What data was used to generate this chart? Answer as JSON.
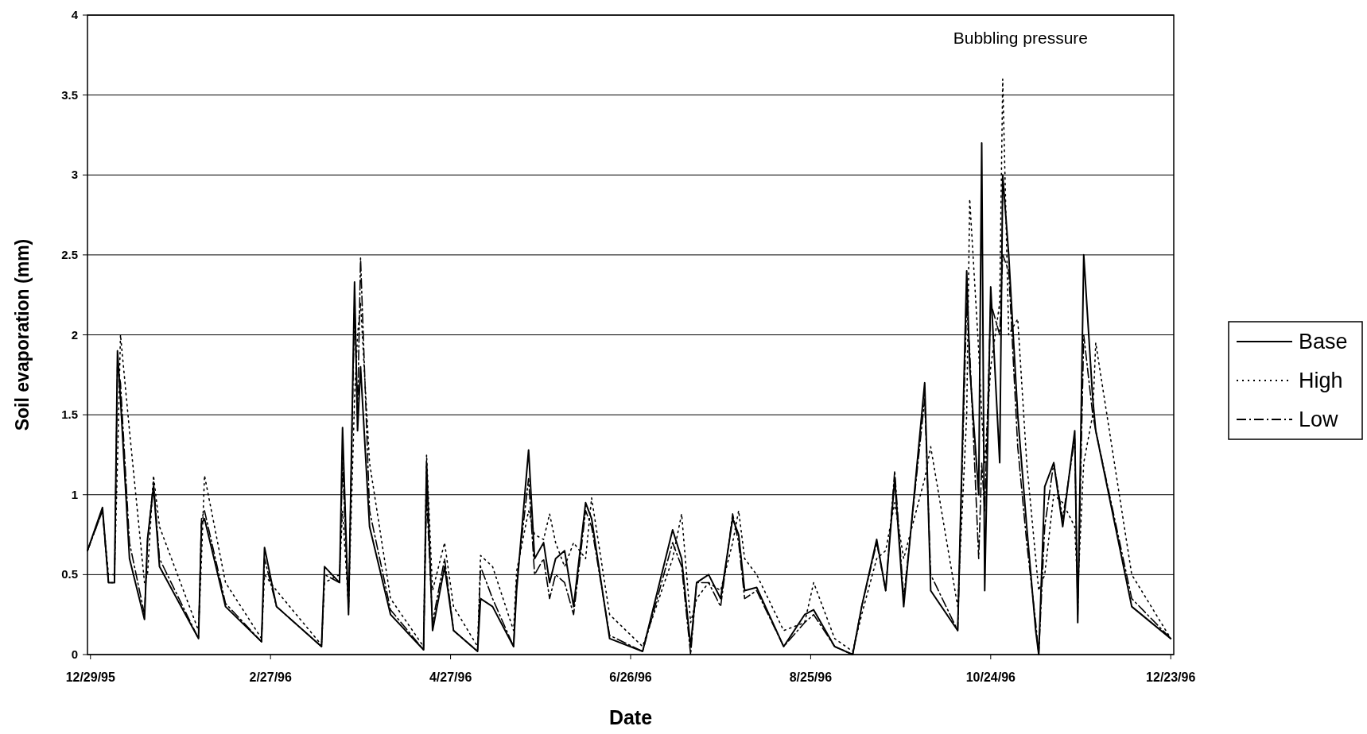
{
  "chart_data": {
    "type": "line",
    "xlabel": "Date",
    "ylabel": "Soil evaporation (mm)",
    "annotations": [
      "Bubbling pressure"
    ],
    "x": [
      "1995-12-28",
      "1996-01-02",
      "1996-01-04",
      "1996-01-06",
      "1996-01-07",
      "1996-01-08",
      "1996-01-11",
      "1996-01-16",
      "1996-01-17",
      "1996-01-19",
      "1996-01-21",
      "1996-02-03",
      "1996-02-04",
      "1996-02-05",
      "1996-02-12",
      "1996-02-24",
      "1996-02-25",
      "1996-02-29",
      "1996-03-15",
      "1996-03-16",
      "1996-03-21",
      "1996-03-22",
      "1996-03-24",
      "1996-03-26",
      "1996-03-27",
      "1996-03-28",
      "1996-03-31",
      "1996-04-07",
      "1996-04-18",
      "1996-04-19",
      "1996-04-21",
      "1996-04-25",
      "1996-04-28",
      "1996-05-06",
      "1996-05-07",
      "1996-05-11",
      "1996-05-18",
      "1996-05-19",
      "1996-05-23",
      "1996-05-25",
      "1996-05-28",
      "1996-05-30",
      "1996-06-01",
      "1996-06-04",
      "1996-06-07",
      "1996-06-11",
      "1996-06-13",
      "1996-06-19",
      "1996-06-30",
      "1996-07-10",
      "1996-07-13",
      "1996-07-16",
      "1996-07-18",
      "1996-07-22",
      "1996-07-26",
      "1996-07-30",
      "1996-08-01",
      "1996-08-03",
      "1996-08-07",
      "1996-08-16",
      "1996-08-23",
      "1996-08-26",
      "1996-09-02",
      "1996-09-08",
      "1996-09-11",
      "1996-09-16",
      "1996-09-19",
      "1996-09-22",
      "1996-09-25",
      "1996-10-02",
      "1996-10-04",
      "1996-10-13",
      "1996-10-16",
      "1996-10-17",
      "1996-10-20",
      "1996-10-21",
      "1996-10-22",
      "1996-10-24",
      "1996-10-27",
      "1996-10-28",
      "1996-10-30",
      "1996-11-02",
      "1996-11-05",
      "1996-11-08",
      "1996-11-09",
      "1996-11-11",
      "1996-11-14",
      "1996-11-17",
      "1996-11-21",
      "1996-11-22",
      "1996-11-24",
      "1996-11-27",
      "1996-11-28",
      "1996-12-10",
      "1996-12-23"
    ],
    "series": [
      {
        "name": "Base",
        "color": "#000000",
        "line_style": "solid",
        "values": [
          0.65,
          0.92,
          0.45,
          0.45,
          1.9,
          1.6,
          0.6,
          0.22,
          0.72,
          1.05,
          0.55,
          0.1,
          0.82,
          0.85,
          0.3,
          0.08,
          0.67,
          0.3,
          0.05,
          0.55,
          0.45,
          1.42,
          0.25,
          2.33,
          1.4,
          1.8,
          0.8,
          0.25,
          0.03,
          1.2,
          0.15,
          0.55,
          0.15,
          0.02,
          0.35,
          0.3,
          0.05,
          0.4,
          1.28,
          0.6,
          0.7,
          0.45,
          0.6,
          0.65,
          0.3,
          0.95,
          0.85,
          0.1,
          0.02,
          0.78,
          0.6,
          0.05,
          0.45,
          0.5,
          0.35,
          0.85,
          0.75,
          0.4,
          0.42,
          0.05,
          0.25,
          0.28,
          0.05,
          0,
          0.3,
          0.72,
          0.4,
          1.1,
          0.3,
          1.7,
          0.4,
          0.15,
          2.4,
          1.8,
          1.0,
          3.2,
          0.4,
          2.3,
          1.2,
          3.0,
          2.5,
          1.5,
          0.8,
          0.15,
          0,
          1.05,
          1.2,
          0.8,
          1.4,
          0.2,
          2.5,
          1.6,
          1.4,
          0.3,
          0.1
        ]
      },
      {
        "name": "High",
        "color": "#000000",
        "line_style": "dotted",
        "values": [
          0.65,
          0.9,
          0.5,
          0.5,
          1.2,
          2.0,
          1.4,
          0.45,
          0.5,
          1.12,
          0.8,
          0.15,
          0.6,
          1.12,
          0.45,
          0.1,
          0.5,
          0.4,
          0.06,
          0.45,
          0.5,
          0.9,
          0.3,
          1.6,
          2.0,
          2.2,
          1.2,
          0.35,
          0.05,
          1.25,
          0.4,
          0.7,
          0.3,
          0.05,
          0.62,
          0.55,
          0.15,
          0.52,
          0.9,
          0.75,
          0.72,
          0.88,
          0.7,
          0.55,
          0.7,
          0.6,
          0.98,
          0.25,
          0.05,
          0.6,
          0.88,
          0.2,
          0.35,
          0.45,
          0.4,
          0.7,
          0.9,
          0.6,
          0.5,
          0.15,
          0.2,
          0.45,
          0.1,
          0.02,
          0.25,
          0.6,
          0.65,
          0.95,
          0.6,
          1.1,
          1.3,
          0.3,
          1.5,
          2.85,
          1.9,
          1.5,
          1.2,
          1.8,
          2.2,
          3.6,
          2.0,
          2.1,
          1.2,
          0.6,
          0.4,
          0.5,
          1.0,
          0.95,
          0.8,
          0.4,
          1.2,
          1.5,
          1.95,
          0.5,
          0.1
        ]
      },
      {
        "name": "Low",
        "color": "#000000",
        "line_style": "dashed",
        "values": [
          0.65,
          0.9,
          0.45,
          0.45,
          1.8,
          1.7,
          0.7,
          0.25,
          0.7,
          1.08,
          0.6,
          0.1,
          0.85,
          0.9,
          0.32,
          0.08,
          0.6,
          0.3,
          0.05,
          0.5,
          0.45,
          1.2,
          0.28,
          2.2,
          1.5,
          2.48,
          0.9,
          0.28,
          0.03,
          1.0,
          0.2,
          0.6,
          0.15,
          0.02,
          0.55,
          0.35,
          0.05,
          0.45,
          1.1,
          0.5,
          0.6,
          0.35,
          0.5,
          0.45,
          0.25,
          0.9,
          0.8,
          0.12,
          0.02,
          0.7,
          0.55,
          0,
          0.45,
          0.45,
          0.3,
          0.88,
          0.7,
          0.35,
          0.4,
          0.05,
          0.2,
          0.25,
          0.05,
          0,
          0.3,
          0.7,
          0.4,
          1.15,
          0.35,
          1.6,
          0.5,
          0.15,
          2.2,
          1.9,
          0.6,
          1.2,
          0.9,
          2.2,
          2.0,
          2.5,
          2.4,
          1.3,
          0.7,
          0.2,
          0,
          0.8,
          1.2,
          0.85,
          1.35,
          0.25,
          2.0,
          1.5,
          1.4,
          0.35,
          0.1
        ]
      }
    ],
    "xlim": [
      "1995-12-28",
      "1996-12-24"
    ],
    "xticks": [
      {
        "value": "1995-12-29",
        "label": "12/29/95"
      },
      {
        "value": "1996-02-27",
        "label": "2/27/96"
      },
      {
        "value": "1996-04-27",
        "label": "4/27/96"
      },
      {
        "value": "1996-06-26",
        "label": "6/26/96"
      },
      {
        "value": "1996-08-25",
        "label": "8/25/96"
      },
      {
        "value": "1996-10-24",
        "label": "10/24/96"
      },
      {
        "value": "1996-12-23",
        "label": "12/23/96"
      }
    ],
    "ylim": [
      0,
      4
    ],
    "yticks": [
      0,
      0.5,
      1,
      1.5,
      2,
      2.5,
      3,
      3.5,
      4
    ],
    "grid": "y",
    "legend": "right",
    "marker": "none"
  }
}
